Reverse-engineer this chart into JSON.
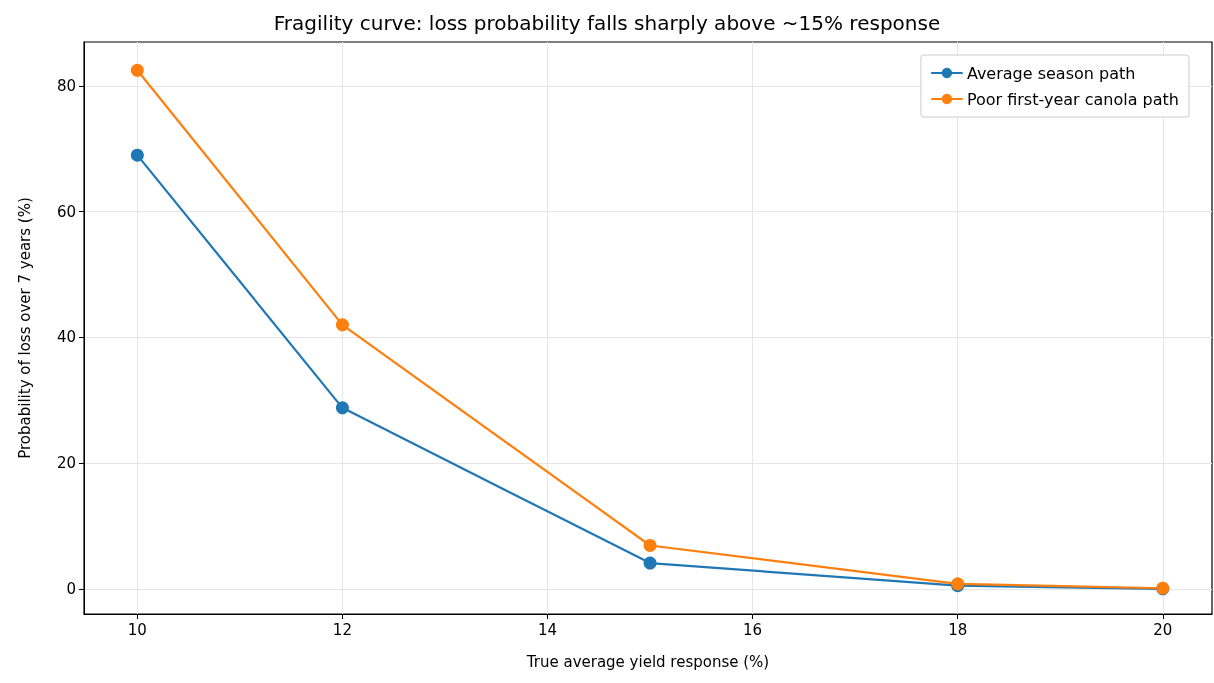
{
  "chart_data": {
    "type": "line",
    "title": "Fragility curve: loss probability falls sharply above ~15% response",
    "xlabel": "True average yield response (%)",
    "ylabel": "Probability of loss over 7 years (%)",
    "x": [
      10,
      12,
      15,
      18,
      20
    ],
    "series": [
      {
        "name": "Average season path",
        "color": "#1f77b4",
        "values": [
          69,
          28.8,
          4.1,
          0.5,
          0
        ]
      },
      {
        "name": "Poor first-year canola path",
        "color": "#ff7f0e",
        "values": [
          82.5,
          42,
          6.9,
          0.8,
          0.1
        ]
      }
    ],
    "xlim": [
      9.48,
      20.48
    ],
    "xticks": [
      10,
      12,
      14,
      16,
      18,
      20
    ],
    "ylim": [
      -4,
      87
    ],
    "yticks": [
      0,
      20,
      40,
      60,
      80
    ],
    "grid": true,
    "legend": "top right",
    "marker": "circle",
    "line_style": "solid"
  }
}
